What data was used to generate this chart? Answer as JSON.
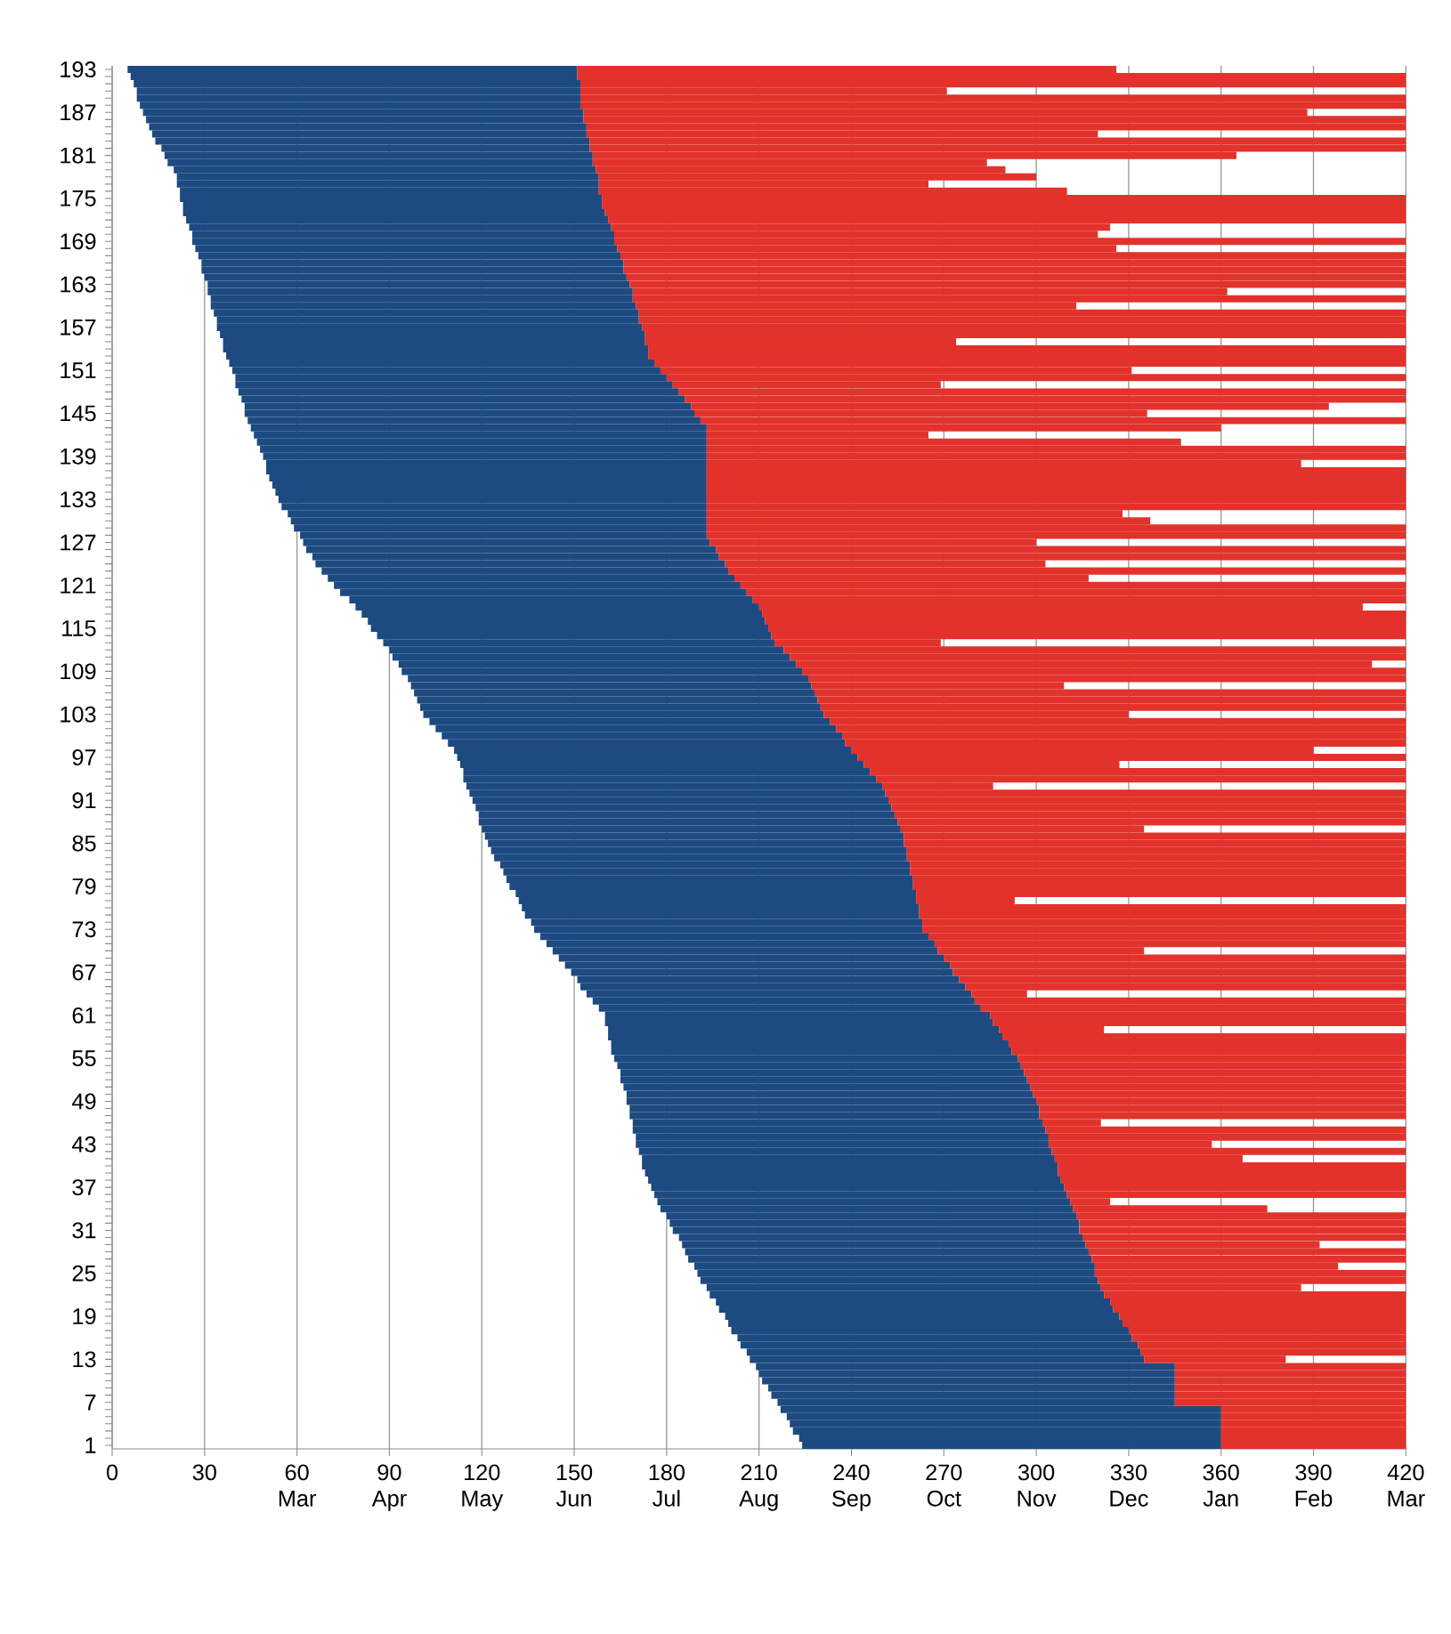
{
  "chart_data": {
    "type": "bar",
    "orientation": "horizontal",
    "categories": [
      "193",
      null,
      null,
      null,
      null,
      null,
      "187",
      null,
      null,
      null,
      null,
      null,
      "181",
      null,
      null,
      null,
      null,
      null,
      "175",
      null,
      null,
      null,
      null,
      null,
      "169",
      null,
      null,
      null,
      null,
      null,
      "163",
      null,
      null,
      null,
      null,
      null,
      "157",
      null,
      null,
      null,
      null,
      null,
      "151",
      null,
      null,
      null,
      null,
      null,
      "145",
      null,
      null,
      null,
      null,
      null,
      "139",
      null,
      null,
      null,
      null,
      null,
      "133",
      null,
      null,
      null,
      null,
      null,
      "127",
      null,
      null,
      null,
      null,
      null,
      "121",
      null,
      null,
      null,
      null,
      null,
      "115",
      null,
      null,
      null,
      null,
      null,
      "109",
      null,
      null,
      null,
      null,
      null,
      "103",
      null,
      null,
      null,
      null,
      null,
      "97",
      null,
      null,
      null,
      null,
      null,
      "91",
      null,
      null,
      null,
      null,
      null,
      "85",
      null,
      null,
      null,
      null,
      null,
      "79",
      null,
      null,
      null,
      null,
      null,
      "73",
      null,
      null,
      null,
      null,
      null,
      "67",
      null,
      null,
      null,
      null,
      null,
      "61",
      null,
      null,
      null,
      null,
      null,
      "55",
      null,
      null,
      null,
      null,
      null,
      "49",
      null,
      null,
      null,
      null,
      null,
      "43",
      null,
      null,
      null,
      null,
      null,
      "37",
      null,
      null,
      null,
      null,
      null,
      "31",
      null,
      null,
      null,
      null,
      null,
      "25",
      null,
      null,
      null,
      null,
      null,
      "19",
      null,
      null,
      null,
      null,
      null,
      "13",
      null,
      null,
      null,
      null,
      null,
      "7",
      null,
      null,
      null,
      null,
      null,
      "1"
    ],
    "series": [
      {
        "color": "#1d4a80",
        "base": [
          5,
          6,
          7,
          8,
          8,
          9,
          10,
          11,
          12,
          13,
          14,
          16,
          17,
          18,
          20,
          21,
          21,
          22,
          22,
          23,
          23,
          24,
          25,
          26,
          26,
          27,
          28,
          29,
          29,
          30,
          31,
          31,
          32,
          32,
          33,
          34,
          34,
          35,
          36,
          36,
          37,
          38,
          39,
          40,
          40,
          41,
          42,
          43,
          43,
          44,
          45,
          46,
          47,
          48,
          49,
          50,
          50,
          51,
          52,
          53,
          54,
          55,
          57,
          58,
          59,
          61,
          62,
          63,
          65,
          66,
          68,
          70,
          72,
          74,
          77,
          79,
          81,
          83,
          84,
          86,
          88,
          90,
          91,
          93,
          94,
          96,
          97,
          98,
          99,
          100,
          101,
          103,
          105,
          107,
          109,
          111,
          112,
          113,
          114,
          114,
          115,
          116,
          117,
          118,
          119,
          119,
          120,
          121,
          122,
          123,
          124,
          126,
          127,
          128,
          129,
          131,
          132,
          133,
          134,
          136,
          137,
          139,
          141,
          143,
          145,
          147,
          149,
          151,
          152,
          154,
          156,
          158,
          160,
          160,
          161,
          161,
          162,
          162,
          163,
          164,
          165,
          165,
          166,
          167,
          167,
          168,
          168,
          169,
          169,
          170,
          170,
          171,
          172,
          172,
          173,
          174,
          175,
          176,
          177,
          178,
          180,
          181,
          182,
          184,
          185,
          186,
          187,
          189,
          190,
          191,
          193,
          194,
          196,
          197,
          199,
          200,
          201,
          203,
          204,
          206,
          207,
          209,
          210,
          211,
          213,
          214,
          216,
          217,
          219,
          220,
          221,
          223,
          224
        ],
        "values": [
          146,
          145,
          145,
          144,
          144,
          143,
          143,
          142,
          142,
          141,
          141,
          139,
          139,
          138,
          137,
          137,
          137,
          136,
          137,
          136,
          137,
          137,
          137,
          137,
          137,
          137,
          137,
          137,
          137,
          137,
          137,
          138,
          137,
          138,
          138,
          137,
          138,
          138,
          137,
          138,
          137,
          138,
          139,
          140,
          142,
          143,
          144,
          145,
          146,
          147,
          148,
          147,
          146,
          145,
          144,
          143,
          143,
          142,
          141,
          140,
          139,
          138,
          136,
          135,
          134,
          132,
          132,
          133,
          132,
          133,
          132,
          132,
          132,
          132,
          131,
          131,
          130,
          129,
          129,
          128,
          127,
          128,
          129,
          129,
          130,
          130,
          130,
          130,
          130,
          130,
          130,
          130,
          130,
          130,
          129,
          129,
          130,
          131,
          132,
          134,
          135,
          135,
          135,
          135,
          135,
          136,
          136,
          136,
          135,
          135,
          134,
          133,
          132,
          132,
          131,
          130,
          129,
          129,
          128,
          127,
          126,
          126,
          126,
          125,
          125,
          125,
          124,
          124,
          125,
          125,
          124,
          124,
          125,
          126,
          127,
          128,
          129,
          130,
          131,
          131,
          131,
          132,
          132,
          132,
          133,
          133,
          133,
          133,
          134,
          134,
          134,
          134,
          134,
          135,
          134,
          134,
          134,
          134,
          134,
          134,
          133,
          133,
          132,
          131,
          131,
          131,
          131,
          130,
          129,
          129,
          128,
          128,
          128,
          128,
          128,
          128,
          129,
          128,
          129,
          128,
          128,
          136,
          135,
          134,
          132,
          131,
          129,
          143,
          141,
          140,
          139,
          137,
          136
        ]
      },
      {
        "color": "#e2322b",
        "base": [
          151,
          151,
          152,
          152,
          152,
          152,
          153,
          153,
          154,
          154,
          155,
          155,
          156,
          156,
          157,
          158,
          158,
          158,
          159,
          159,
          160,
          161,
          162,
          163,
          163,
          164,
          165,
          166,
          166,
          167,
          168,
          169,
          169,
          170,
          171,
          171,
          172,
          173,
          173,
          174,
          174,
          176,
          178,
          180,
          182,
          184,
          186,
          188,
          189,
          191,
          193,
          193,
          193,
          193,
          193,
          193,
          193,
          193,
          193,
          193,
          193,
          193,
          193,
          193,
          193,
          193,
          194,
          196,
          197,
          199,
          200,
          202,
          204,
          206,
          208,
          210,
          211,
          212,
          213,
          214,
          215,
          218,
          220,
          222,
          224,
          226,
          227,
          228,
          229,
          230,
          231,
          233,
          235,
          237,
          238,
          240,
          242,
          244,
          246,
          248,
          250,
          251,
          252,
          253,
          254,
          255,
          256,
          257,
          257,
          258,
          258,
          259,
          259,
          260,
          260,
          261,
          261,
          262,
          262,
          263,
          263,
          265,
          267,
          268,
          270,
          272,
          273,
          275,
          277,
          279,
          280,
          282,
          285,
          286,
          288,
          289,
          291,
          292,
          294,
          295,
          296,
          297,
          298,
          299,
          300,
          301,
          301,
          302,
          303,
          304,
          304,
          305,
          306,
          307,
          307,
          308,
          309,
          310,
          311,
          312,
          313,
          314,
          314,
          315,
          316,
          317,
          318,
          319,
          319,
          320,
          321,
          322,
          324,
          325,
          327,
          328,
          330,
          331,
          333,
          334,
          335,
          345,
          345,
          345,
          345,
          345,
          345,
          360,
          360,
          360,
          360,
          360,
          360
        ],
        "values": [
          175,
          269,
          268,
          119,
          268,
          268,
          235,
          267,
          266,
          166,
          265,
          265,
          209,
          128,
          133,
          142,
          107,
          152,
          261,
          261,
          260,
          259,
          162,
          157,
          257,
          162,
          255,
          254,
          254,
          253,
          252,
          193,
          251,
          143,
          249,
          249,
          248,
          247,
          101,
          246,
          246,
          244,
          153,
          240,
          87,
          236,
          234,
          207,
          147,
          229,
          167,
          72,
          154,
          227,
          227,
          193,
          227,
          227,
          227,
          227,
          227,
          227,
          135,
          144,
          227,
          227,
          106,
          224,
          223,
          104,
          220,
          115,
          216,
          214,
          212,
          196,
          209,
          208,
          207,
          206,
          54,
          202,
          200,
          187,
          196,
          194,
          82,
          192,
          191,
          190,
          99,
          187,
          185,
          183,
          182,
          150,
          178,
          83,
          174,
          172,
          36,
          169,
          168,
          167,
          166,
          165,
          79,
          163,
          163,
          162,
          162,
          161,
          161,
          160,
          160,
          159,
          32,
          158,
          158,
          157,
          157,
          155,
          153,
          67,
          150,
          148,
          147,
          145,
          143,
          18,
          140,
          138,
          135,
          134,
          34,
          131,
          129,
          128,
          126,
          125,
          124,
          123,
          122,
          121,
          120,
          119,
          119,
          19,
          117,
          116,
          53,
          115,
          61,
          113,
          113,
          112,
          111,
          110,
          13,
          63,
          107,
          106,
          106,
          105,
          76,
          103,
          102,
          79,
          101,
          100,
          65,
          98,
          96,
          95,
          93,
          92,
          90,
          89,
          87,
          86,
          46,
          75,
          75,
          75,
          75,
          75,
          75,
          60,
          60,
          60,
          60,
          60,
          60
        ]
      }
    ],
    "xlim": [
      0,
      420
    ],
    "xticks": [
      0,
      30,
      {
        "value": 60,
        "label": "60 Mar"
      },
      {
        "value": 90,
        "label": "90 Apr"
      },
      {
        "value": 120,
        "label": "120 May"
      },
      {
        "value": 150,
        "label": "150 Jun"
      },
      {
        "value": 180,
        "label": "180 Jul"
      },
      {
        "value": 210,
        "label": "210 Aug"
      },
      {
        "value": 240,
        "label": "240 Sep"
      },
      {
        "value": 270,
        "label": "270 Oct"
      },
      {
        "value": 300,
        "label": "300 Nov"
      },
      {
        "value": 330,
        "label": "330 Dec"
      },
      {
        "value": 360,
        "label": "360 Jan"
      },
      {
        "value": 390,
        "label": "390 Feb"
      },
      {
        "value": 420,
        "label": "420 Mar"
      }
    ],
    "grid": "x"
  }
}
